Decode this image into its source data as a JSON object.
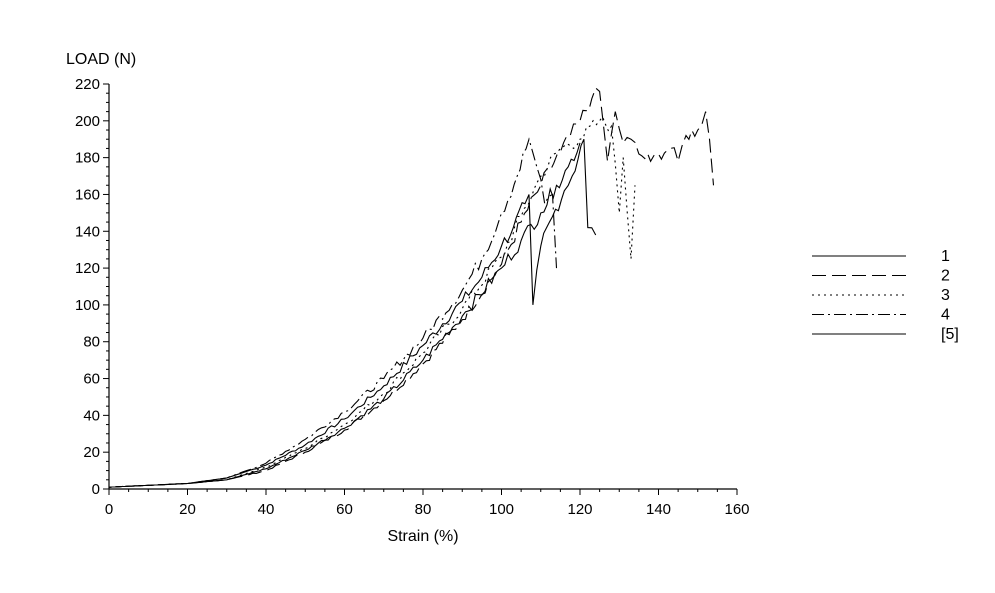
{
  "chart_data": {
    "type": "line",
    "title": "",
    "ylabel": "LOAD (N)",
    "xlabel": "Strain (%)",
    "xlim": [
      0,
      160
    ],
    "ylim": [
      0,
      220
    ],
    "x_ticks": [
      0,
      20,
      40,
      60,
      80,
      100,
      120,
      140,
      160
    ],
    "y_ticks": [
      0,
      20,
      40,
      60,
      80,
      100,
      120,
      140,
      160,
      180,
      200,
      220
    ],
    "grid": false,
    "legend_position": "right",
    "series": [
      {
        "name": "1",
        "dash": "solid",
        "points": [
          [
            0,
            1
          ],
          [
            10,
            2
          ],
          [
            20,
            3
          ],
          [
            30,
            6
          ],
          [
            40,
            13
          ],
          [
            50,
            24
          ],
          [
            60,
            38
          ],
          [
            70,
            56
          ],
          [
            80,
            78
          ],
          [
            90,
            102
          ],
          [
            95,
            115
          ],
          [
            100,
            132
          ],
          [
            103,
            142
          ],
          [
            106,
            155
          ],
          [
            107,
            160
          ],
          [
            108,
            100
          ],
          [
            110,
            132
          ],
          [
            113,
            148
          ],
          [
            116,
            162
          ],
          [
            118,
            170
          ],
          [
            121,
            190
          ],
          [
            122,
            142
          ],
          [
            124,
            138
          ]
        ]
      },
      {
        "name": "2",
        "dash": "long-dash",
        "points": [
          [
            0,
            1
          ],
          [
            10,
            2
          ],
          [
            20,
            3
          ],
          [
            30,
            5
          ],
          [
            40,
            10
          ],
          [
            50,
            20
          ],
          [
            60,
            32
          ],
          [
            70,
            48
          ],
          [
            80,
            68
          ],
          [
            90,
            92
          ],
          [
            100,
            122
          ],
          [
            105,
            145
          ],
          [
            110,
            165
          ],
          [
            115,
            183
          ],
          [
            120,
            200
          ],
          [
            123,
            212
          ],
          [
            125,
            216
          ],
          [
            127,
            178
          ],
          [
            129,
            205
          ],
          [
            131,
            188
          ],
          [
            133,
            190
          ],
          [
            135,
            182
          ],
          [
            138,
            178
          ],
          [
            140,
            182
          ],
          [
            143,
            185
          ],
          [
            145,
            178
          ],
          [
            147,
            192
          ],
          [
            150,
            195
          ],
          [
            152,
            205
          ],
          [
            153,
            190
          ],
          [
            154,
            165
          ]
        ]
      },
      {
        "name": "3",
        "dash": "dotted",
        "points": [
          [
            0,
            1
          ],
          [
            10,
            2
          ],
          [
            20,
            3
          ],
          [
            30,
            5
          ],
          [
            40,
            12
          ],
          [
            50,
            22
          ],
          [
            60,
            35
          ],
          [
            70,
            52
          ],
          [
            80,
            74
          ],
          [
            90,
            98
          ],
          [
            100,
            126
          ],
          [
            105,
            148
          ],
          [
            110,
            170
          ],
          [
            115,
            185
          ],
          [
            120,
            190
          ],
          [
            125,
            200
          ],
          [
            128,
            197
          ],
          [
            130,
            150
          ],
          [
            131,
            180
          ],
          [
            133,
            125
          ],
          [
            134,
            165
          ]
        ]
      },
      {
        "name": "4",
        "dash": "dash-dot",
        "points": [
          [
            0,
            1
          ],
          [
            10,
            2
          ],
          [
            20,
            3
          ],
          [
            30,
            6
          ],
          [
            40,
            14
          ],
          [
            50,
            27
          ],
          [
            60,
            42
          ],
          [
            70,
            60
          ],
          [
            80,
            82
          ],
          [
            90,
            108
          ],
          [
            95,
            125
          ],
          [
            100,
            150
          ],
          [
            104,
            170
          ],
          [
            107,
            190
          ],
          [
            109,
            175
          ],
          [
            111,
            155
          ],
          [
            113,
            160
          ],
          [
            114,
            120
          ]
        ]
      },
      {
        "name": "[5]",
        "dash": "solid",
        "points": [
          [
            0,
            1
          ],
          [
            10,
            2
          ],
          [
            20,
            3
          ],
          [
            30,
            5
          ],
          [
            40,
            11
          ],
          [
            50,
            21
          ],
          [
            60,
            33
          ],
          [
            70,
            49
          ],
          [
            80,
            70
          ],
          [
            90,
            94
          ],
          [
            100,
            120
          ],
          [
            105,
            135
          ],
          [
            110,
            150
          ],
          [
            114,
            165
          ],
          [
            117,
            175
          ],
          [
            120,
            188
          ]
        ]
      }
    ]
  }
}
